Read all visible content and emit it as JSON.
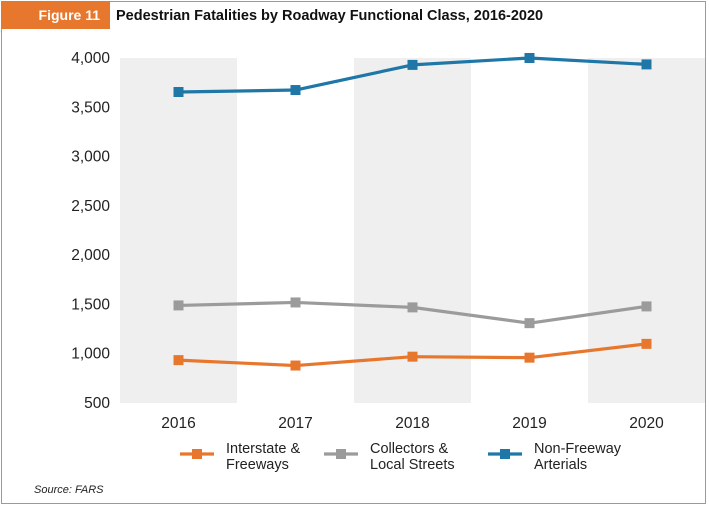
{
  "figure_label": "Figure 11",
  "title": "Pedestrian Fatalities by Roadway Functional Class, 2016-2020",
  "source": "Source: FARS",
  "chart_data": {
    "type": "line",
    "x": [
      "2016",
      "2017",
      "2018",
      "2019",
      "2020"
    ],
    "ylim": [
      500,
      4000
    ],
    "yticks": [
      500,
      1000,
      1500,
      2000,
      2500,
      3000,
      3500,
      4000
    ],
    "ytick_labels": [
      "500",
      "1,000",
      "1,500",
      "2,000",
      "2,500",
      "3,000",
      "3,500",
      "4,000"
    ],
    "grid": false,
    "background": "alternating vertical bands",
    "legend_position": "bottom",
    "series": [
      {
        "name": "Interstate & Freeways",
        "name_lines": [
          "Interstate &",
          "Freeways"
        ],
        "color": "#e8772e",
        "values": [
          935,
          880,
          970,
          960,
          1100
        ]
      },
      {
        "name": "Collectors & Local Streets",
        "name_lines": [
          "Collectors &",
          "Local Streets"
        ],
        "color": "#9b9b9b",
        "values": [
          1490,
          1520,
          1470,
          1310,
          1480
        ]
      },
      {
        "name": "Non-Freeway Arterials",
        "name_lines": [
          "Non-Freeway",
          "Arterials"
        ],
        "color": "#1f77a8",
        "values": [
          3655,
          3675,
          3930,
          4000,
          3935
        ]
      }
    ],
    "band_color": "#efefef"
  }
}
